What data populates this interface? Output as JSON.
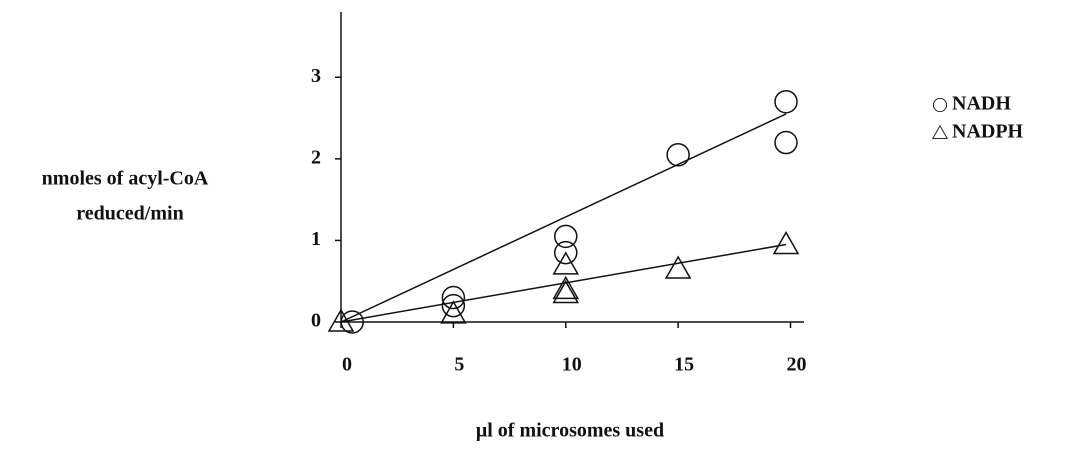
{
  "chart_data": {
    "type": "scatter",
    "y_label": [
      "nmoles of acyl-CoA",
      "reduced/min"
    ],
    "x_label": "μl of microsomes used",
    "xlim": [
      0,
      20.6
    ],
    "ylim": [
      0,
      3.8
    ],
    "xticks": [
      0,
      5,
      10,
      15,
      20
    ],
    "yticks": [
      0,
      1,
      2,
      3
    ],
    "legend": "right",
    "series": [
      {
        "name": "NADH",
        "marker": "circle",
        "color": "#111111",
        "x": [
          0.5,
          5,
          5,
          10,
          10,
          15,
          19.8,
          19.8
        ],
        "values": [
          0,
          0.3,
          0.2,
          1.05,
          0.85,
          2.05,
          2.7,
          2.2
        ],
        "fit": {
          "x": [
            0,
            19.8
          ],
          "values": [
            0,
            2.55
          ]
        }
      },
      {
        "name": "NADPH",
        "marker": "triangle",
        "color": "#111111",
        "x": [
          0,
          5,
          10,
          10,
          10,
          15,
          19.8
        ],
        "values": [
          0,
          0.1,
          0.7,
          0.4,
          0.35,
          0.65,
          0.95
        ],
        "fit": {
          "x": [
            0,
            19.8
          ],
          "values": [
            0,
            0.95
          ]
        }
      }
    ]
  }
}
